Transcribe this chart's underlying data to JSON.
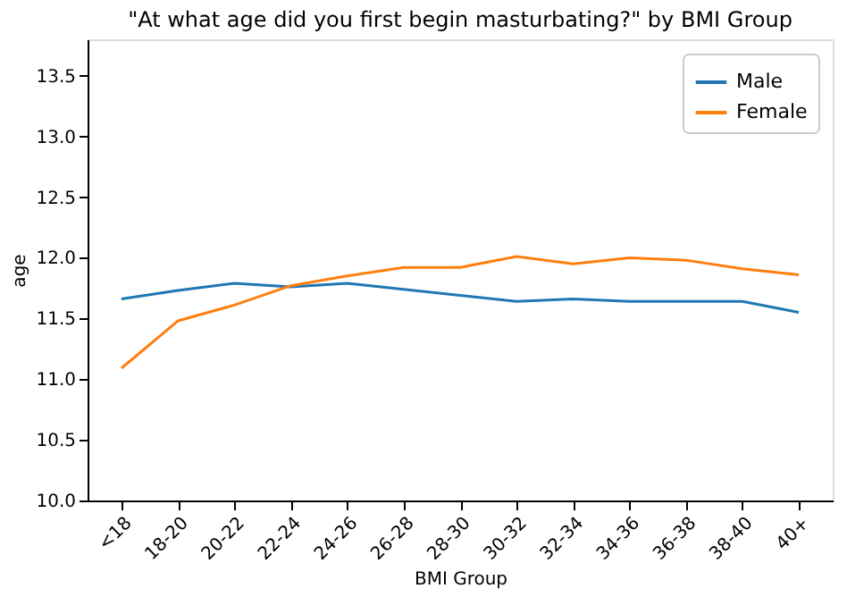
{
  "chart_data": {
    "type": "line",
    "title": "\"At what age did you first begin masturbating?\" by BMI Group",
    "xlabel": "BMI Group",
    "ylabel": "age",
    "categories": [
      "<18",
      "18-20",
      "20-22",
      "22-24",
      "24-26",
      "26-28",
      "28-30",
      "30-32",
      "32-34",
      "34-36",
      "36-38",
      "38-40",
      "40+"
    ],
    "series": [
      {
        "name": "Male",
        "color": "#1f77b4",
        "values": [
          11.66,
          11.73,
          11.79,
          11.76,
          11.79,
          11.74,
          11.69,
          11.64,
          11.66,
          11.64,
          11.64,
          11.64,
          11.55
        ]
      },
      {
        "name": "Female",
        "color": "#ff7f0e",
        "values": [
          11.09,
          11.48,
          11.61,
          11.77,
          11.85,
          11.92,
          11.92,
          12.01,
          11.95,
          12.0,
          11.98,
          11.91,
          11.86
        ]
      }
    ],
    "ylim": [
      10,
      13.8
    ],
    "yticks": [
      {
        "value": 10,
        "label": "10.0"
      },
      {
        "value": 10.5,
        "label": "10.5"
      },
      {
        "value": 11,
        "label": "11.0"
      },
      {
        "value": 11.5,
        "label": "11.5"
      },
      {
        "value": 12,
        "label": "12.0"
      },
      {
        "value": 12.5,
        "label": "12.5"
      },
      {
        "value": 13,
        "label": "13.0"
      },
      {
        "value": 13.5,
        "label": "13.5"
      }
    ],
    "grid": false,
    "legend": "top right",
    "marker": "none",
    "line_style": "solid"
  }
}
